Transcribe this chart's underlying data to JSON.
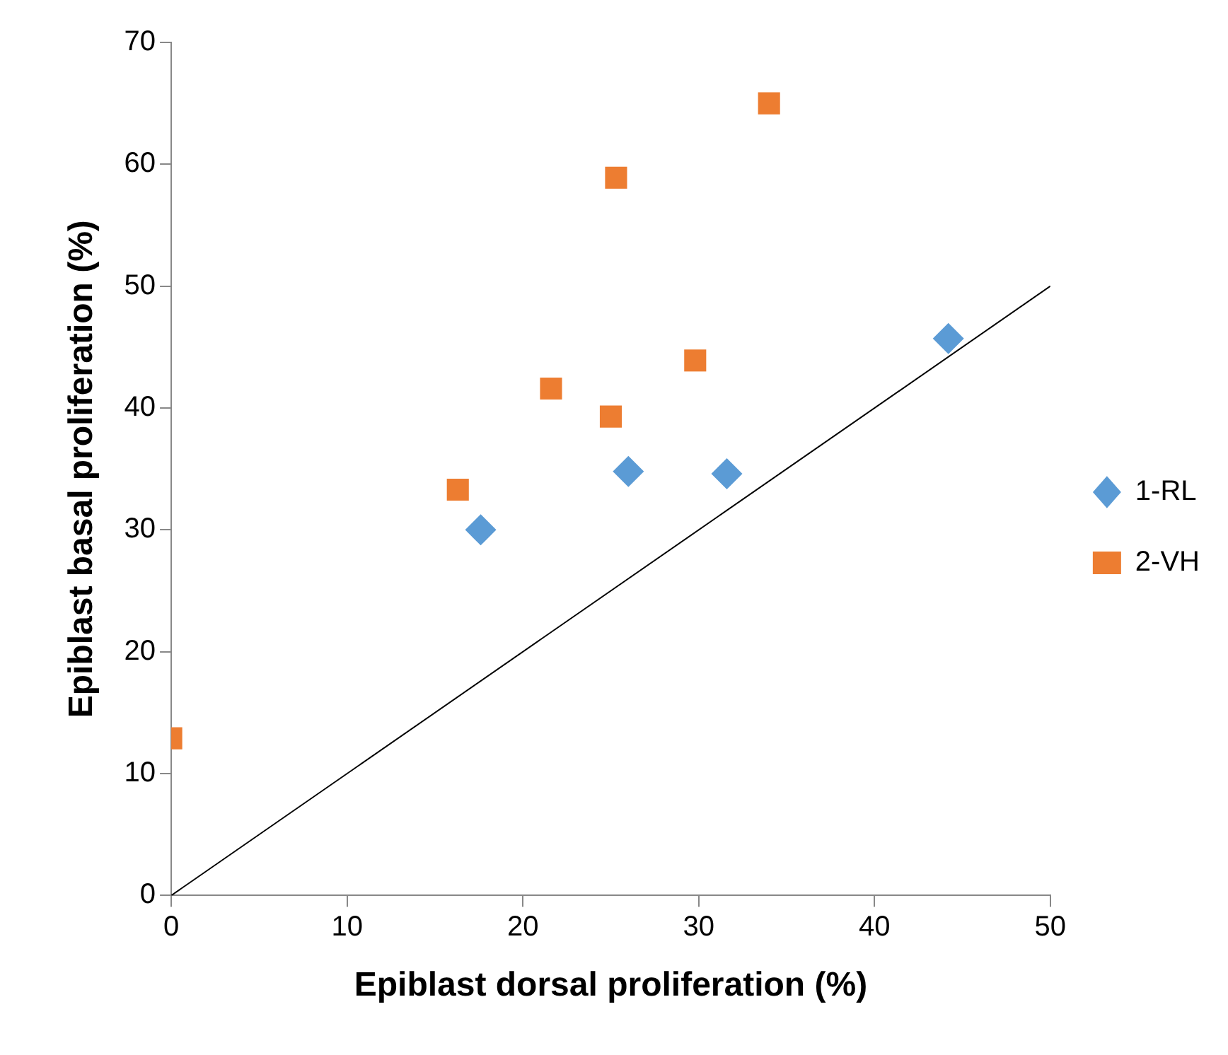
{
  "chart_data": {
    "type": "scatter",
    "xlabel": "Epiblast dorsal proliferation (%)",
    "ylabel": "Epiblast basal proliferation (%)",
    "xlim": [
      0,
      50
    ],
    "xticks": [
      0,
      10,
      20,
      30,
      40,
      50
    ],
    "ylim": [
      0,
      70
    ],
    "yticks": [
      0,
      10,
      20,
      30,
      40,
      50,
      60,
      70
    ],
    "grid": false,
    "legend": "right",
    "series": [
      {
        "name": "1-RL",
        "color": "#5b9bd5",
        "marker": "diamond",
        "x": [
          17.6,
          26.0,
          31.6,
          44.2
        ],
        "values": [
          30.0,
          34.8,
          34.6,
          45.7
        ]
      },
      {
        "name": "2-VH",
        "color": "#ed7d31",
        "marker": "square",
        "x": [
          0,
          16.3,
          21.6,
          25.0,
          25.3,
          29.8,
          34.0
        ],
        "values": [
          12.9,
          33.3,
          41.6,
          39.3,
          58.9,
          43.9,
          65.0
        ]
      },
      {
        "type": "line",
        "color": "#000000",
        "marker": "none",
        "line_style": "solid",
        "x": [
          0,
          50
        ],
        "values": [
          0,
          50
        ]
      }
    ]
  }
}
